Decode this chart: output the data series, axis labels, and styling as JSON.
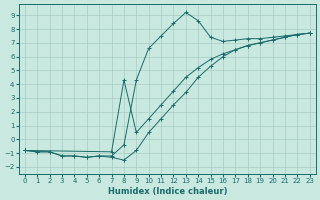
{
  "xlabel": "Humidex (Indice chaleur)",
  "xlim": [
    -0.5,
    23.5
  ],
  "ylim": [
    -2.5,
    9.8
  ],
  "xticks": [
    0,
    1,
    2,
    3,
    4,
    5,
    6,
    7,
    8,
    9,
    10,
    11,
    12,
    13,
    14,
    15,
    16,
    17,
    18,
    19,
    20,
    21,
    22,
    23
  ],
  "yticks": [
    -2,
    -1,
    0,
    1,
    2,
    3,
    4,
    5,
    6,
    7,
    8,
    9
  ],
  "bg_color": "#c8e8e0",
  "grid_color": "#a8ccc4",
  "line_color": "#1a6b6b",
  "line1_x": [
    0,
    1,
    2,
    3,
    4,
    5,
    6,
    7,
    8,
    9,
    10,
    11,
    12,
    13,
    14,
    15,
    16,
    17,
    18,
    19,
    20,
    21,
    22,
    23
  ],
  "line1_y": [
    -0.8,
    -0.9,
    -0.9,
    -1.2,
    -1.2,
    -1.3,
    -1.2,
    -1.2,
    -0.4,
    4.3,
    6.6,
    7.5,
    8.4,
    9.2,
    8.6,
    7.4,
    7.1,
    7.2,
    7.3,
    7.3,
    7.4,
    7.5,
    7.6,
    7.7
  ],
  "line2_x": [
    0,
    1,
    2,
    3,
    4,
    5,
    6,
    7,
    8,
    9,
    10,
    11,
    12,
    13,
    14,
    15,
    16,
    17,
    18,
    19,
    20,
    21,
    22,
    23
  ],
  "line2_y": [
    -0.8,
    -0.9,
    -0.9,
    -1.2,
    -1.2,
    -1.3,
    -1.2,
    -1.3,
    -1.5,
    -0.8,
    0.5,
    1.5,
    2.5,
    3.4,
    4.5,
    5.3,
    6.0,
    6.5,
    6.8,
    7.0,
    7.2,
    7.4,
    7.6,
    7.7
  ],
  "line3_x": [
    0,
    7,
    8,
    9,
    10,
    11,
    12,
    13,
    14,
    15,
    16,
    17,
    18,
    19,
    20,
    21,
    22,
    23
  ],
  "line3_y": [
    -0.8,
    -0.9,
    4.3,
    0.5,
    1.5,
    2.5,
    3.5,
    4.5,
    5.2,
    5.8,
    6.2,
    6.5,
    6.8,
    7.0,
    7.2,
    7.4,
    7.6,
    7.7
  ]
}
